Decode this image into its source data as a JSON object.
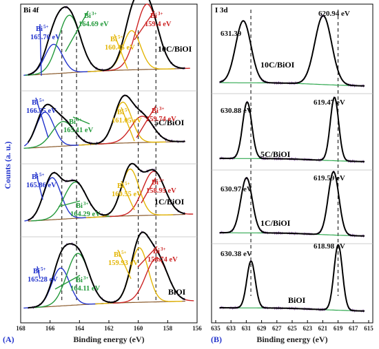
{
  "chart_data": [
    {
      "type": "line",
      "panel": "(A)",
      "title": "Bi 4f",
      "xlabel": "Binding energy (eV)",
      "ylabel": "Counts (a. u.)",
      "xlim": [
        168,
        156
      ],
      "x_ticks": [
        "168",
        "166",
        "164",
        "162",
        "160",
        "158",
        "156"
      ],
      "colors": {
        "bi5_a": "#2233cc",
        "bi5_b": "#22993a",
        "bi3_a": "#e3b505",
        "bi3_b": "#cc2222",
        "envelope": "#000000",
        "raw": "#6a2c91",
        "background": "#8a5a2b"
      },
      "reference_lines_eV": [
        165.2,
        164.2,
        160.0,
        158.8
      ],
      "spectra": [
        {
          "sample": "10C/BiOI",
          "peaks": [
            {
              "ion": "Bi",
              "charge": "5+",
              "value": "165.76 eV",
              "center": 165.76,
              "color": "#2233cc"
            },
            {
              "ion": "Bi",
              "charge": "3+",
              "value": "164.69 eV",
              "center": 164.69,
              "color": "#22993a"
            },
            {
              "ion": "Bi",
              "charge": "5+",
              "value": "160.45 eV",
              "center": 160.45,
              "color": "#e3b505"
            },
            {
              "ion": "Bi",
              "charge": "3+",
              "value": "159.4 eV",
              "center": 159.4,
              "color": "#cc2222"
            }
          ]
        },
        {
          "sample": "5C/BiOI",
          "peaks": [
            {
              "ion": "Bi",
              "charge": "5+",
              "value": "166.35 eV",
              "center": 166.35,
              "color": "#2233cc"
            },
            {
              "ion": "Bi",
              "charge": "3+",
              "value": "165.11 eV",
              "center": 165.11,
              "color": "#22993a"
            },
            {
              "ion": "Bi",
              "charge": "5+",
              "value": "161.05 eV",
              "center": 161.05,
              "color": "#e3b505"
            },
            {
              "ion": "Bi",
              "charge": "3+",
              "value": "159.74 eV",
              "center": 159.74,
              "color": "#cc2222"
            }
          ]
        },
        {
          "sample": "1C/BiOI",
          "peaks": [
            {
              "ion": "Bi",
              "charge": "5+",
              "value": "165.86 eV",
              "center": 165.86,
              "color": "#2233cc"
            },
            {
              "ion": "Bi",
              "charge": "3+",
              "value": "164.29 eV",
              "center": 164.29,
              "color": "#22993a"
            },
            {
              "ion": "Bi",
              "charge": "5+",
              "value": "160.55 eV",
              "center": 160.55,
              "color": "#e3b505"
            },
            {
              "ion": "Bi",
              "charge": "3+",
              "value": "158.95 eV",
              "center": 158.95,
              "color": "#cc2222"
            }
          ]
        },
        {
          "sample": "BiOI",
          "peaks": [
            {
              "ion": "Bi",
              "charge": "5+",
              "value": "165.28 eV",
              "center": 165.28,
              "color": "#2233cc"
            },
            {
              "ion": "Bi",
              "charge": "3+",
              "value": "164.11 eV",
              "center": 164.11,
              "color": "#22993a"
            },
            {
              "ion": "Bi",
              "charge": "5+",
              "value": "159.93 eV",
              "center": 159.93,
              "color": "#e3b505"
            },
            {
              "ion": "Bi",
              "charge": "3+",
              "value": "158.74 eV",
              "center": 158.74,
              "color": "#cc2222"
            }
          ]
        }
      ]
    },
    {
      "type": "line",
      "panel": "(B)",
      "title": "I 3d",
      "xlabel": "Binding energy (eV)",
      "xlim": [
        635,
        615
      ],
      "x_ticks": [
        "635",
        "633",
        "631",
        "629",
        "627",
        "625",
        "623",
        "621",
        "619",
        "617",
        "615"
      ],
      "colors": {
        "envelope": "#000000",
        "raw": "#6a2c91",
        "background": "#2fa84f"
      },
      "reference_lines_eV": [
        630.4,
        619.0
      ],
      "spectra": [
        {
          "sample": "10C/BiOI",
          "peaks": [
            {
              "value": "631.39",
              "center": 631.39
            },
            {
              "value": "620.94 eV",
              "center": 620.94
            }
          ]
        },
        {
          "sample": "5C/BiOI",
          "peaks": [
            {
              "value": "630.88 eV",
              "center": 630.88
            },
            {
              "value": "619.47 eV",
              "center": 619.47
            }
          ]
        },
        {
          "sample": "1C/BiOI",
          "peaks": [
            {
              "value": "630.97 eV",
              "center": 630.97
            },
            {
              "value": "619.59 eV",
              "center": 619.59
            }
          ]
        },
        {
          "sample": "BiOI",
          "peaks": [
            {
              "value": "630.38 eV",
              "center": 630.38
            },
            {
              "value": "618.98 eV",
              "center": 618.98
            }
          ]
        }
      ]
    }
  ]
}
